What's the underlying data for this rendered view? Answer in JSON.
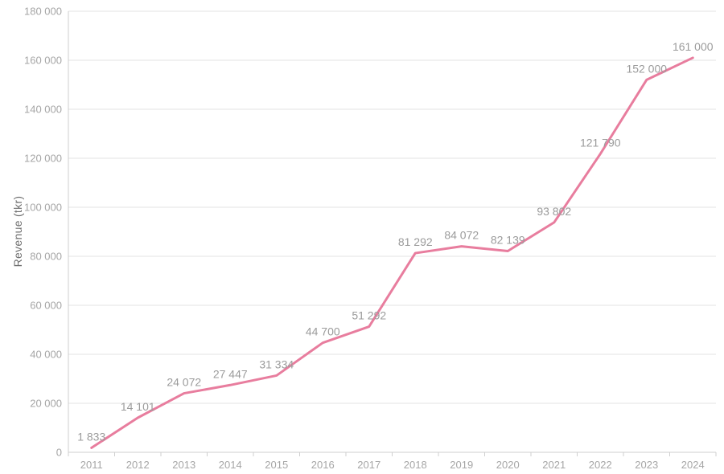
{
  "chart_data": {
    "type": "line",
    "title": "",
    "xlabel": "",
    "ylabel": "Revenue (tkr)",
    "categories": [
      "2011",
      "2012",
      "2013",
      "2014",
      "2015",
      "2016",
      "2017",
      "2018",
      "2019",
      "2020",
      "2021",
      "2022",
      "2023",
      "2024"
    ],
    "series": [
      {
        "name": "Revenue",
        "values": [
          1833,
          14101,
          24072,
          27447,
          31334,
          44700,
          51292,
          81292,
          84072,
          82139,
          93802,
          121790,
          152000,
          161000
        ],
        "value_labels": [
          "1 833",
          "14 101",
          "24 072",
          "27 447",
          "31 334",
          "44 700",
          "51 292",
          "81 292",
          "84 072",
          "82 139",
          "93 802",
          "121 790",
          "152 000",
          "161 000"
        ]
      }
    ],
    "ylim": [
      0,
      180000
    ],
    "ytick_step": 20000,
    "ytick_labels": [
      "0",
      "20 000",
      "40 000",
      "60 000",
      "80 000",
      "100 000",
      "120 000",
      "140 000",
      "160 000",
      "180 000"
    ],
    "grid": true,
    "legend": "none",
    "colors": {
      "line": "#e87d9e",
      "gridline": "#e3e3e3",
      "axis": "#cfcfcf",
      "tick_label": "#a6a6a6",
      "data_label": "#9b9b9b",
      "axis_title": "#6f6f6f",
      "background": "#ffffff"
    }
  }
}
